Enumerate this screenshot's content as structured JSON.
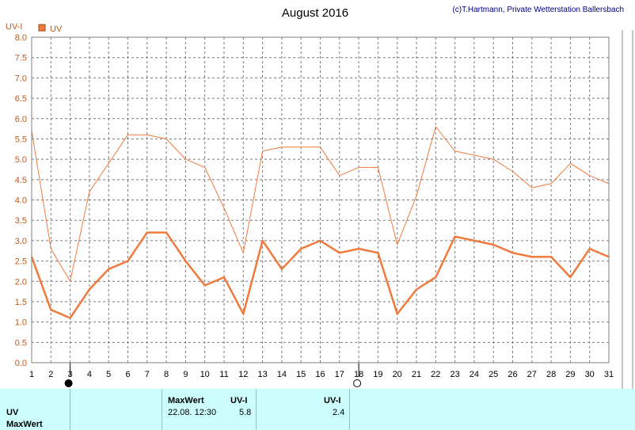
{
  "header": {
    "title": "August 2016",
    "credit": "(c)T.Hartmann, Private Wetterstation Ballersbach"
  },
  "chart_data": {
    "type": "line",
    "title": "August 2016",
    "ylabel": "UV-I",
    "xlabel": "",
    "ylim": [
      0,
      8
    ],
    "yticks": [
      "0.0",
      "0.5",
      "1.0",
      "1.5",
      "2.0",
      "2.5",
      "3.0",
      "3.5",
      "4.0",
      "4.5",
      "5.0",
      "5.5",
      "6.0",
      "6.5",
      "7.0",
      "7.5",
      "8.0"
    ],
    "x": [
      1,
      2,
      3,
      4,
      5,
      6,
      7,
      8,
      9,
      10,
      11,
      12,
      13,
      14,
      15,
      16,
      17,
      18,
      19,
      20,
      21,
      22,
      23,
      24,
      25,
      26,
      27,
      28,
      29,
      30,
      31
    ],
    "grid": true,
    "legend": "top-left",
    "series": [
      {
        "name": "UV",
        "style": "thick",
        "color": "#f07a3c",
        "values": [
          2.6,
          1.3,
          1.1,
          1.8,
          2.3,
          2.5,
          3.2,
          3.2,
          2.5,
          1.9,
          2.1,
          1.2,
          3.0,
          2.3,
          2.8,
          3.0,
          2.7,
          2.8,
          2.7,
          1.2,
          1.8,
          2.1,
          3.1,
          3.0,
          2.9,
          2.7,
          2.6,
          2.6,
          2.1,
          2.8,
          2.6
        ]
      },
      {
        "name": "",
        "style": "thin",
        "color": "#f07a3c",
        "values": [
          5.7,
          2.8,
          2.0,
          4.2,
          4.9,
          5.6,
          5.6,
          5.5,
          5.0,
          4.8,
          3.8,
          2.7,
          5.2,
          5.3,
          5.3,
          5.3,
          4.6,
          4.8,
          4.8,
          2.9,
          4.1,
          5.8,
          5.2,
          5.1,
          5.0,
          4.7,
          4.3,
          4.4,
          4.9,
          4.6,
          4.4
        ]
      }
    ],
    "moon_phases": [
      {
        "day": 3,
        "phase": "new-moon"
      },
      {
        "day": 18,
        "phase": "full-moon"
      }
    ]
  },
  "footer": {
    "row_uv": "UV",
    "row_maxwert": "MaxWert",
    "col_maxwert": "MaxWert",
    "col_uvi_1": "UV-I",
    "col_uvi_2": "UV-I",
    "max_datetime": "22.08.  12:30",
    "max_value": "5.8",
    "avg_value": "2.4"
  }
}
